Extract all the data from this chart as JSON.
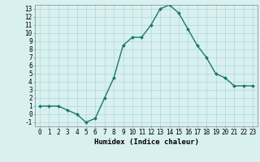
{
  "x": [
    0,
    1,
    2,
    3,
    4,
    5,
    6,
    7,
    8,
    9,
    10,
    11,
    12,
    13,
    14,
    15,
    16,
    17,
    18,
    19,
    20,
    21,
    22,
    23
  ],
  "y": [
    1,
    1,
    1,
    0.5,
    0,
    -1,
    -0.5,
    2,
    4.5,
    8.5,
    9.5,
    9.5,
    11,
    13,
    13.5,
    12.5,
    10.5,
    8.5,
    7,
    5,
    4.5,
    3.5,
    3.5,
    3.5
  ],
  "ylim": [
    -1.5,
    13.5
  ],
  "xlim": [
    -0.5,
    23.5
  ],
  "yticks": [
    -1,
    0,
    1,
    2,
    3,
    4,
    5,
    6,
    7,
    8,
    9,
    10,
    11,
    12,
    13
  ],
  "xticks": [
    0,
    1,
    2,
    3,
    4,
    5,
    6,
    7,
    8,
    9,
    10,
    11,
    12,
    13,
    14,
    15,
    16,
    17,
    18,
    19,
    20,
    21,
    22,
    23
  ],
  "line_color": "#1a7a6a",
  "marker_color": "#1a7a6a",
  "bg_color": "#d8f0f0",
  "grid_color": "#b0d8d8",
  "xlabel": "Humidex (Indice chaleur)",
  "xlabel_fontsize": 6.5,
  "tick_fontsize": 5.5,
  "linewidth": 1.0,
  "markersize": 2.0
}
